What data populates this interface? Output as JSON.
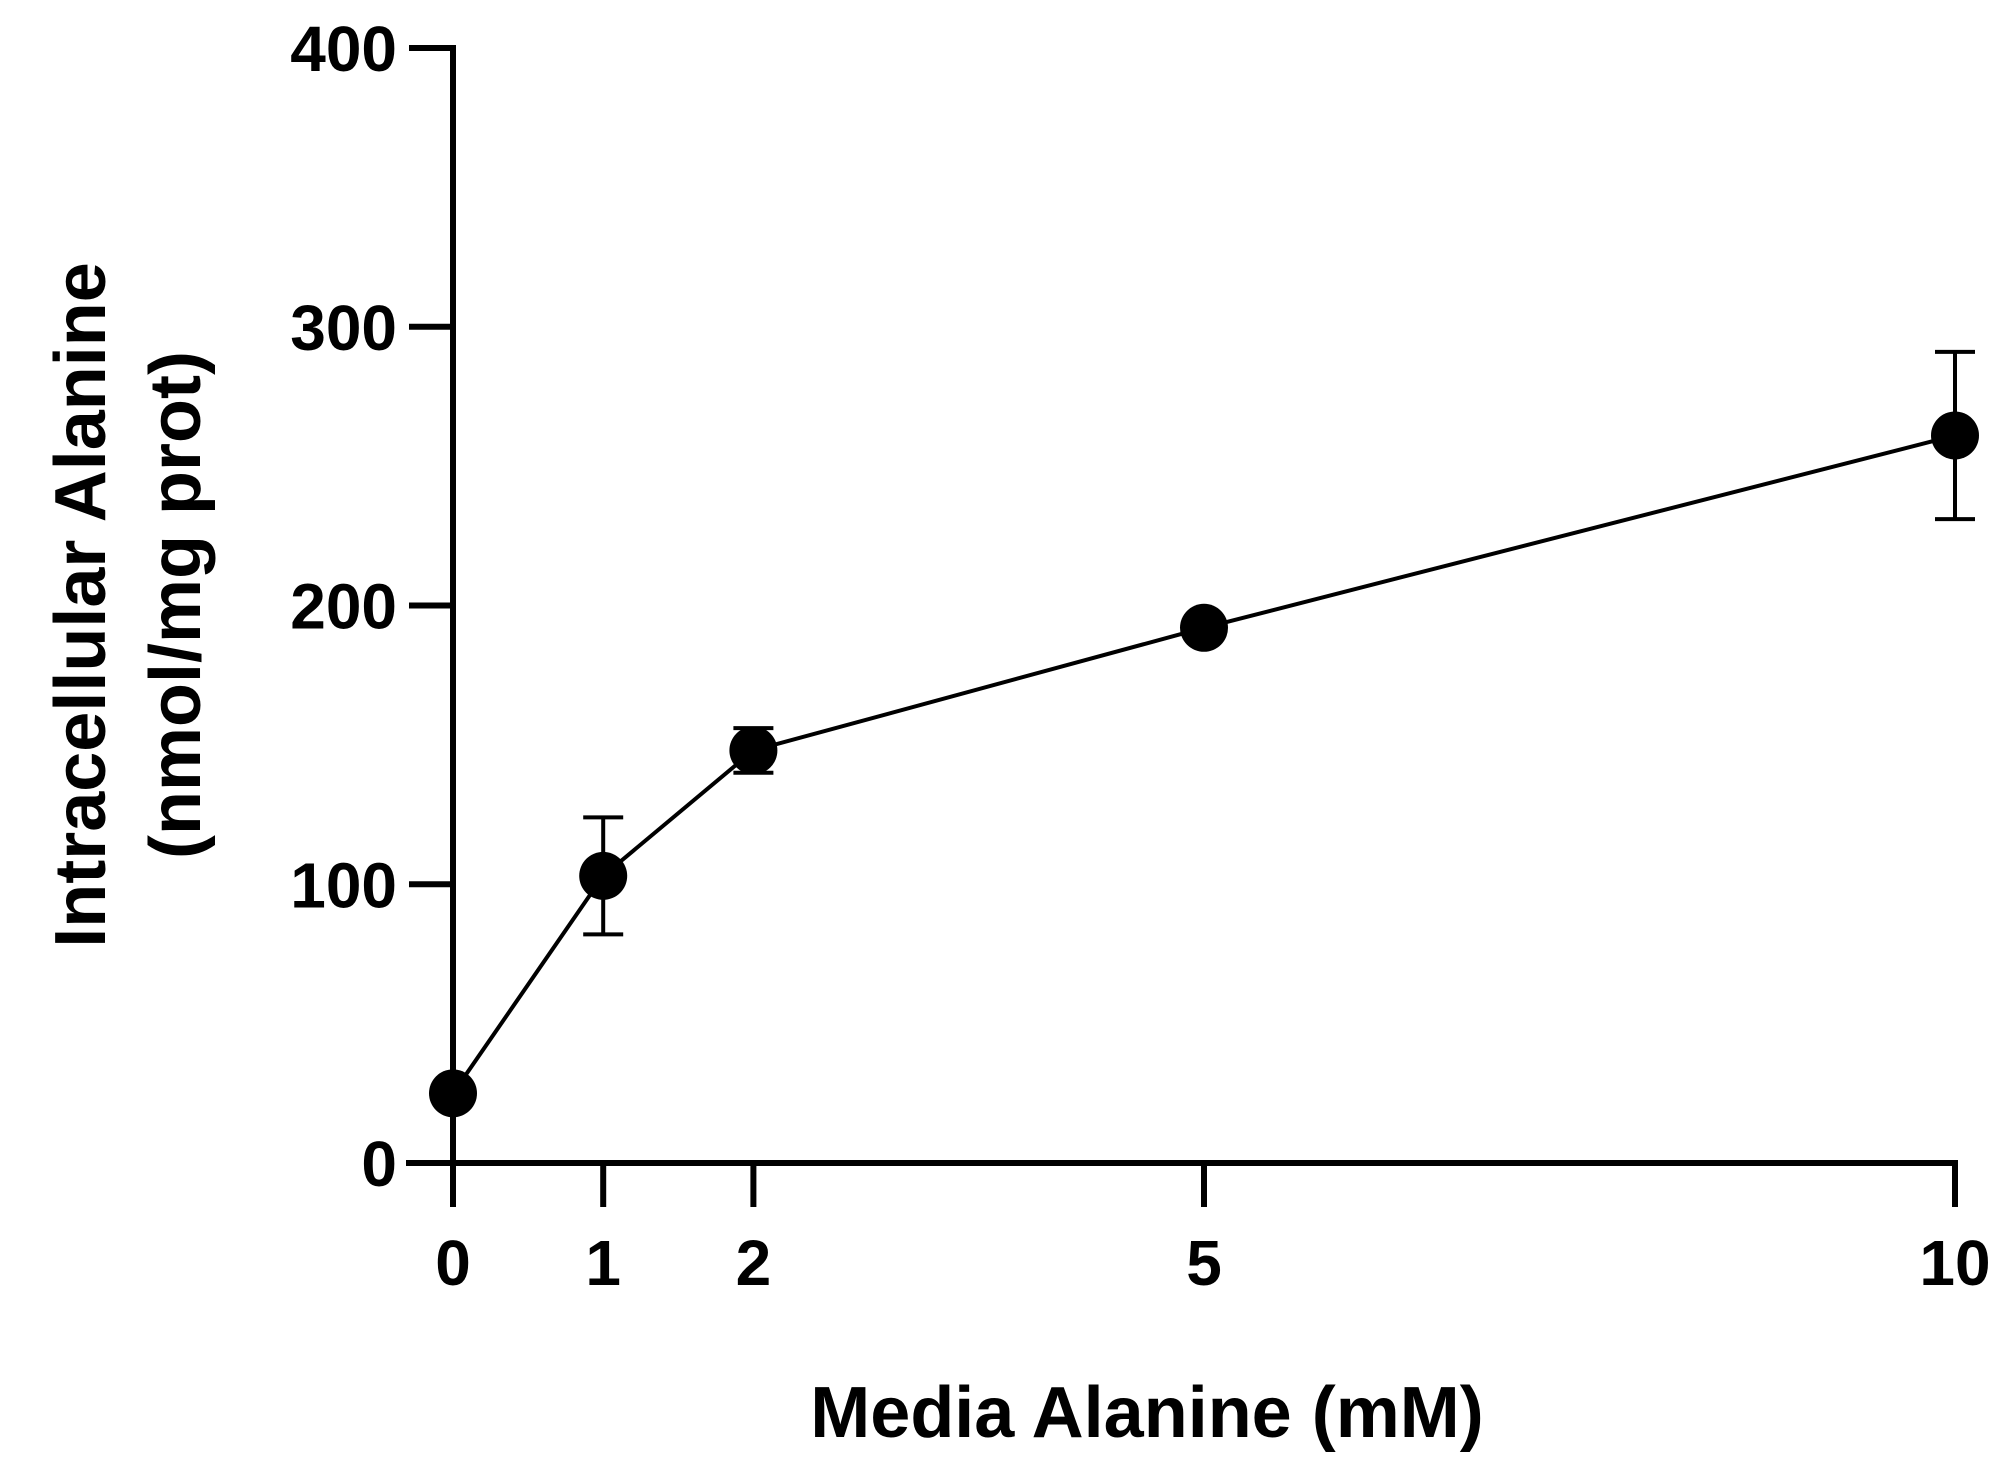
{
  "chart_data": {
    "type": "scatter",
    "xlabel": "Media Alanine (mM)",
    "ylabel_lines": [
      "Intracellular Alanine",
      "(nmol/mg prot)"
    ],
    "xlim": [
      0,
      10
    ],
    "ylim": [
      0,
      400
    ],
    "x_ticks": [
      0,
      1,
      2,
      5,
      10
    ],
    "y_ticks": [
      0,
      100,
      200,
      300,
      400
    ],
    "grid": false,
    "connected": true,
    "series": [
      {
        "x": [
          0,
          1,
          2,
          5,
          10
        ],
        "y": [
          25,
          103,
          148,
          192,
          261
        ],
        "error": [
          3,
          21,
          8,
          3,
          30
        ]
      }
    ],
    "colors": {
      "axis": "#000000",
      "marker": "#000000",
      "line": "#000000"
    }
  }
}
